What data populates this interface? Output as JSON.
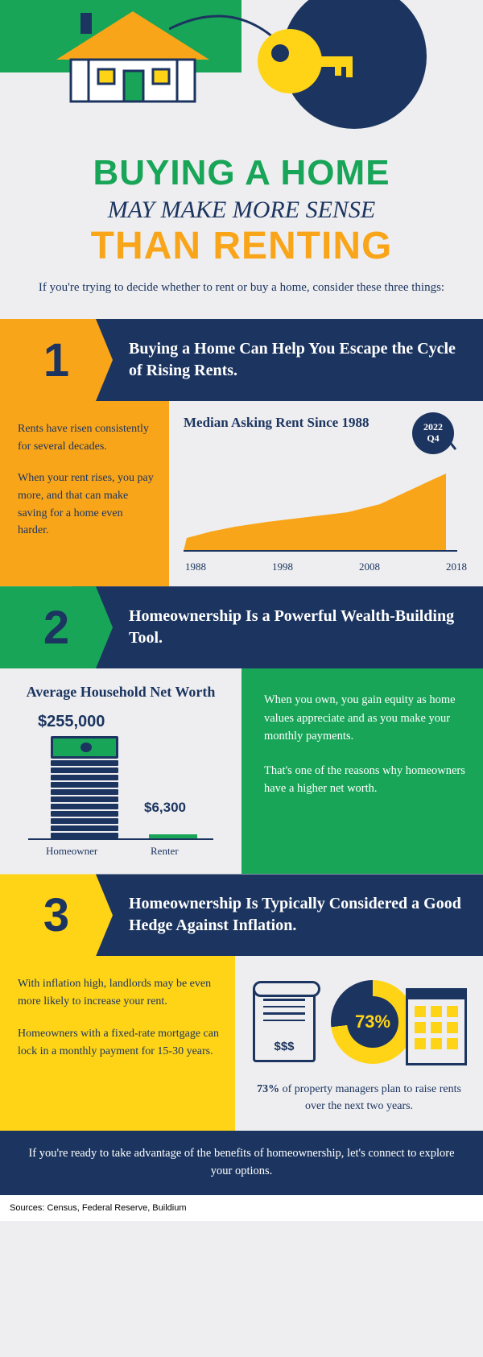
{
  "colors": {
    "green": "#18a558",
    "navy": "#1c3560",
    "orange": "#f9a51a",
    "yellow": "#ffd417",
    "bg": "#eeeef0"
  },
  "headline": {
    "line1": "BUYING A HOME",
    "line2": "MAY MAKE MORE SENSE",
    "line3": "THAN RENTING",
    "sub": "If you're trying to decide whether to rent or buy a home, consider these three things:"
  },
  "section1": {
    "number": "1",
    "title": "Buying a Home Can Help You Escape the Cycle of Rising Rents.",
    "left_p1": "Rents have risen consistently for several decades.",
    "left_p2": "When your rent rises, you pay more, and that can make saving for a home even harder.",
    "chart": {
      "title": "Median Asking Rent Since 1988",
      "bubble": "2022\nQ4",
      "xticks": [
        "1988",
        "1998",
        "2008",
        "2018"
      ],
      "fill_color": "#f9a51a",
      "bubble_bg": "#1c3560",
      "points": [
        [
          0,
          86
        ],
        [
          30,
          78
        ],
        [
          60,
          72
        ],
        [
          100,
          66
        ],
        [
          150,
          60
        ],
        [
          200,
          54
        ],
        [
          240,
          44
        ],
        [
          270,
          30
        ],
        [
          300,
          16
        ],
        [
          322,
          6
        ]
      ]
    }
  },
  "section2": {
    "number": "2",
    "title": "Homeownership Is a Powerful Wealth-Building Tool.",
    "nw_title": "Average Household Net Worth",
    "bars": {
      "categories": [
        "Homeowner",
        "Renter"
      ],
      "values_text": [
        "$255,000",
        "$6,300"
      ],
      "bar_colors": [
        "#1c3560",
        "#18a558"
      ]
    },
    "right_p1": "When you own, you gain equity as home values appreciate and as you make your monthly payments.",
    "right_p2": "That's one of the reasons why homeowners have a higher net worth."
  },
  "section3": {
    "number": "3",
    "title": "Homeownership Is Typically Considered a Good Hedge Against Inflation.",
    "left_p1": "With inflation high, landlords may be even more likely to increase your rent.",
    "left_p2": "Homeowners with a fixed-rate mortgage can lock in a monthly payment for 15-30 years.",
    "donut": {
      "percent_text": "73%",
      "percent_deg": 263,
      "fg": "#ffd417",
      "bg": "#1c3560"
    },
    "scroll_text": "$$$",
    "caption_bold": "73%",
    "caption_rest": " of property managers plan to raise rents over the next two years."
  },
  "cta": "If you're ready to take advantage of the benefits of homeownership, let's connect to explore your options.",
  "sources": "Sources: Census, Federal Reserve, Buildium"
}
